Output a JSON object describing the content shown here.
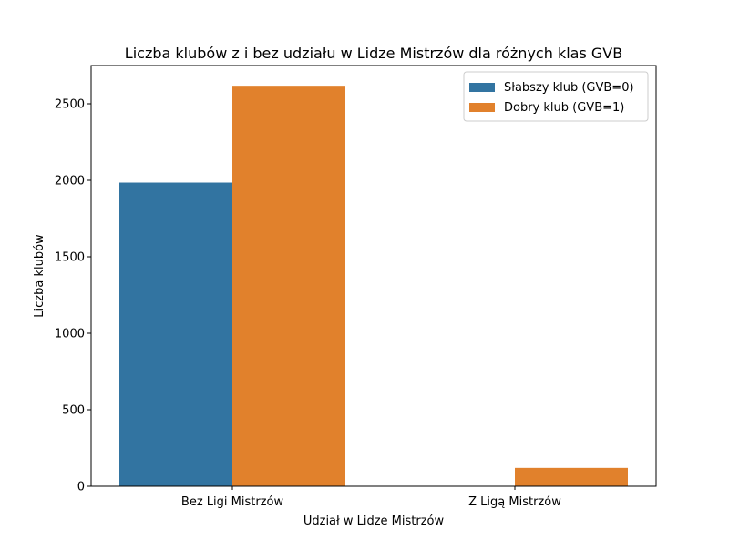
{
  "chart_data": {
    "type": "bar",
    "title": "Liczba klubów z i bez udziału w Lidze Mistrzów dla różnych klas GVB",
    "xlabel": "Udział w Lidze Mistrzów",
    "ylabel": "Liczba klubów",
    "categories": [
      "Bez Ligi Mistrzów",
      "Z Ligą Mistrzów"
    ],
    "series": [
      {
        "name": "Słabszy klub (GVB=0)",
        "values": [
          1985,
          0
        ],
        "color": "#3274a1"
      },
      {
        "name": "Dobry klub (GVB=1)",
        "values": [
          2618,
          120
        ],
        "color": "#e1812c"
      }
    ],
    "ylim": [
      0,
      2750
    ],
    "yticks": [
      0,
      500,
      1000,
      1500,
      2000,
      2500
    ],
    "grid": false,
    "legend_position": "top-right"
  }
}
